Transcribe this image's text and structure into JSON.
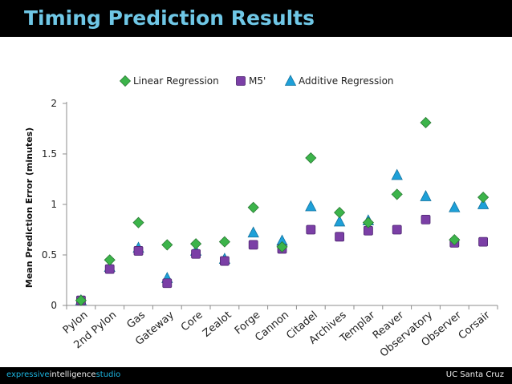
{
  "slide": {
    "title": "Timing Prediction Results",
    "footer_left_1": "expressive",
    "footer_left_2": "intelligence",
    "footer_left_3": "studio",
    "footer_right": "UC Santa Cruz"
  },
  "colors": {
    "title": "#6fc7e6",
    "linear": "#3cb44a",
    "m5": "#7b3fa6",
    "additive": "#1ea0d8"
  },
  "chart_data": {
    "type": "scatter",
    "title": "",
    "xlabel": "",
    "ylabel": "Mean Prediction Error (minutes)",
    "ylim": [
      0,
      2
    ],
    "yticks": [
      0,
      0.5,
      1,
      1.5,
      2
    ],
    "ytick_labels": [
      "0",
      "0.5",
      "1",
      "1.5",
      "2"
    ],
    "grid": false,
    "legend_position": "top",
    "categories": [
      "Pylon",
      "2nd Pylon",
      "Gas",
      "Gateway",
      "Core",
      "Zealot",
      "Forge",
      "Cannon",
      "Citadel",
      "Archives",
      "Templar",
      "Reaver",
      "Observatory",
      "Observer",
      "Corsair"
    ],
    "series": [
      {
        "name": "Linear Regression",
        "marker": "diamond",
        "values": [
          0.05,
          0.45,
          0.82,
          0.6,
          0.61,
          0.63,
          0.97,
          0.58,
          1.46,
          0.92,
          0.82,
          1.1,
          1.81,
          0.65,
          1.07
        ]
      },
      {
        "name": "M5'",
        "marker": "square",
        "values": [
          0.05,
          0.36,
          0.54,
          0.22,
          0.51,
          0.44,
          0.6,
          0.56,
          0.75,
          0.68,
          0.74,
          0.75,
          0.85,
          0.62,
          0.63
        ]
      },
      {
        "name": "Additive Regression",
        "marker": "triangle",
        "values": [
          0.05,
          0.38,
          0.57,
          0.27,
          0.54,
          0.46,
          0.72,
          0.64,
          0.98,
          0.83,
          0.84,
          1.29,
          1.08,
          0.97,
          1.0
        ]
      }
    ]
  }
}
